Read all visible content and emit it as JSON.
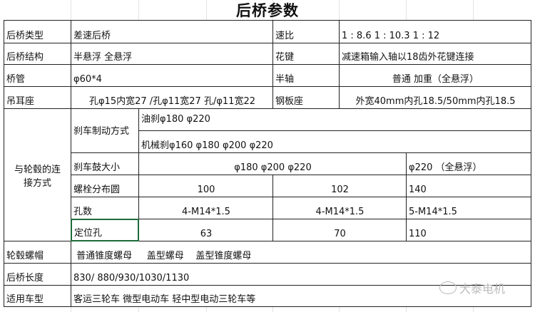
{
  "title": "后桥参数",
  "rows": {
    "axle_type": {
      "label": "后桥类型",
      "value": "差速后桥",
      "label2": "速比",
      "value2": "1 : 8.6    1 : 10.3     1 : 12"
    },
    "axle_structure": {
      "label": "后桥结构",
      "value": "半悬浮      全悬浮",
      "label2": "花键",
      "value2": "减速箱输入轴以18齿外花键连接"
    },
    "axle_tube": {
      "label": "桥管",
      "value": "φ60*4",
      "label2": "半轴",
      "value2": "普通  加重（全悬浮）"
    },
    "lug_seat": {
      "label": "吊耳座",
      "value": "孔φ15内宽27  /孔φ11宽27 孔/φ11宽22",
      "label2": "钢板座",
      "value2": "外宽40mm内孔18.5/50mm内孔18.5"
    }
  },
  "hub_connection": {
    "label": "与轮毂的连接方式",
    "brake_method": {
      "label": "刹车制动方式",
      "oil": "油刹φ180   φ220",
      "mechanical": "机械刹φ160  φ180    φ200    φ220"
    },
    "drum_size": {
      "label": "刹车鼓大小",
      "value": "φ180  φ200    φ220",
      "value2": "φ220     （全悬浮）"
    },
    "bolt_circle": {
      "label": "螺栓分布圆",
      "values": [
        "100",
        "102",
        "140"
      ]
    },
    "hole_count": {
      "label": "孔数",
      "values": [
        "4-M14*1.5",
        "4-M14*1.5",
        "5-M14*1.5"
      ]
    },
    "locating_hole": {
      "label": "定位孔",
      "values": [
        "63",
        "70",
        "110"
      ]
    }
  },
  "bottom": {
    "hub_nut": {
      "label": "轮毂螺帽",
      "value": " 普通锥度螺母     盖型螺母    盖型锥度螺母"
    },
    "axle_length": {
      "label": "后桥长度",
      "value": "830/ 880/930/1030/1130"
    },
    "vehicles": {
      "label": "适用车型",
      "value": "客运三轮车  微型电动车  轻中型电动三轮车等"
    }
  },
  "watermark": "大泰电机",
  "colors": {
    "selection_border": "#1e6b3a",
    "grid": "#e3e3e3",
    "border": "#222222"
  }
}
